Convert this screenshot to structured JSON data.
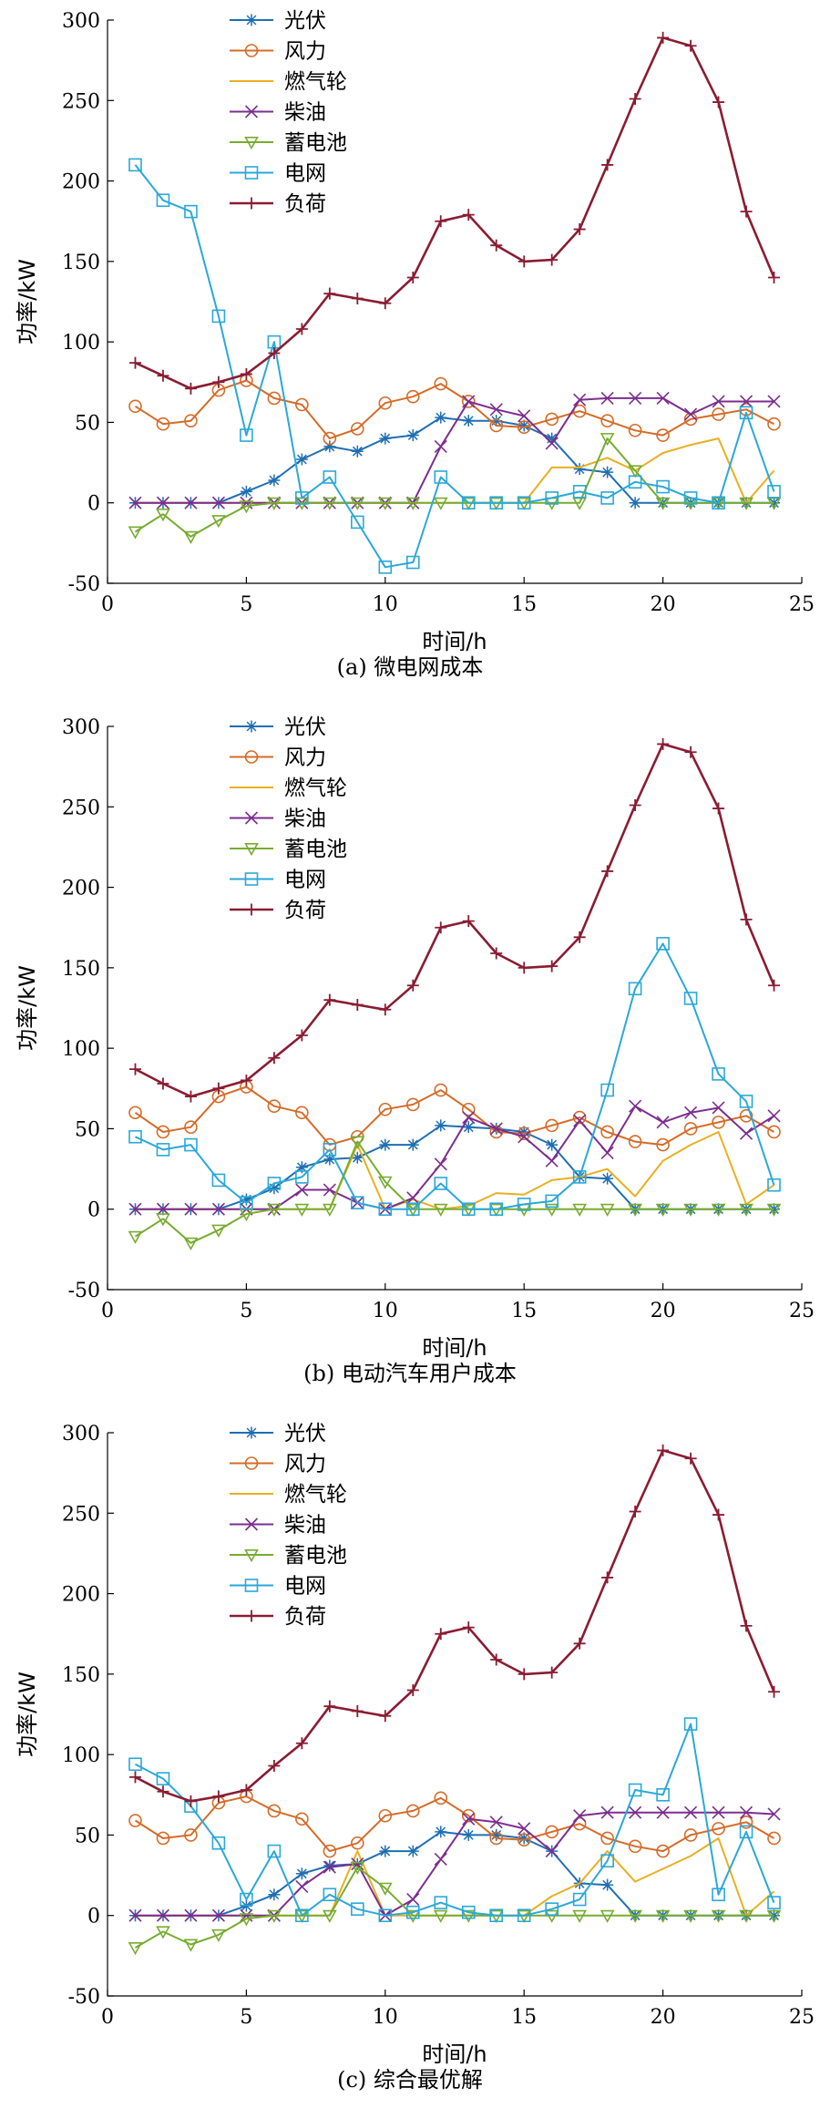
{
  "chart_data": [
    {
      "type": "line",
      "caption": "(a) 微电网成本",
      "xlabel": "时间/h",
      "ylabel": "功率/kW",
      "xlim": [
        0,
        25
      ],
      "ylim": [
        -50,
        300
      ],
      "xticks": [
        0,
        5,
        10,
        15,
        20,
        25
      ],
      "yticks": [
        -50,
        0,
        50,
        100,
        150,
        200,
        250,
        300
      ],
      "legend_position": "top-left",
      "x": [
        1,
        2,
        3,
        4,
        5,
        6,
        7,
        8,
        9,
        10,
        11,
        12,
        13,
        14,
        15,
        16,
        17,
        18,
        19,
        20,
        21,
        22,
        23,
        24
      ],
      "series": [
        {
          "name": "光伏",
          "color": "#1f6fb2",
          "marker": "asterisk",
          "values": [
            0,
            0,
            0,
            0,
            7,
            14,
            27,
            35,
            32,
            40,
            42,
            53,
            51,
            51,
            48,
            40,
            21,
            19,
            0,
            0,
            0,
            0,
            0,
            0
          ]
        },
        {
          "name": "风力",
          "color": "#d56b28",
          "marker": "circle",
          "values": [
            60,
            49,
            51,
            70,
            76,
            65,
            61,
            40,
            46,
            62,
            66,
            74,
            63,
            48,
            47,
            52,
            57,
            51,
            45,
            42,
            52,
            55,
            58,
            49
          ]
        },
        {
          "name": "燃气轮",
          "color": "#e8b021",
          "marker": "none",
          "values": [
            0,
            0,
            0,
            0,
            0,
            0,
            0,
            0,
            0,
            0,
            0,
            0,
            0,
            0,
            0,
            22,
            22,
            28,
            20,
            31,
            36,
            40,
            0,
            20
          ]
        },
        {
          "name": "柴油",
          "color": "#7b2e8e",
          "marker": "x",
          "values": [
            0,
            0,
            0,
            0,
            0,
            0,
            0,
            0,
            0,
            0,
            0,
            35,
            63,
            58,
            54,
            37,
            64,
            65,
            65,
            65,
            55,
            63,
            63,
            63
          ]
        },
        {
          "name": "蓄电池",
          "color": "#77ac30",
          "marker": "triangle",
          "values": [
            -18,
            -7,
            -21,
            -11,
            -2,
            0,
            0,
            0,
            0,
            0,
            0,
            0,
            0,
            0,
            0,
            0,
            0,
            40,
            20,
            0,
            0,
            0,
            0,
            0
          ]
        },
        {
          "name": "电网",
          "color": "#2aa8d8",
          "marker": "square",
          "values": [
            210,
            188,
            181,
            116,
            42,
            100,
            3,
            16,
            -12,
            -40,
            -37,
            16,
            0,
            0,
            0,
            3,
            7,
            3,
            13,
            10,
            3,
            0,
            56,
            7
          ]
        },
        {
          "name": "负荷",
          "color": "#8a1c32",
          "marker": "plus",
          "values": [
            87,
            79,
            71,
            75,
            80,
            93,
            108,
            130,
            127,
            124,
            140,
            175,
            179,
            160,
            150,
            151,
            170,
            210,
            251,
            289,
            284,
            249,
            181,
            140
          ]
        }
      ]
    },
    {
      "type": "line",
      "caption": "(b) 电动汽车用户成本",
      "xlabel": "时间/h",
      "ylabel": "功率/kW",
      "xlim": [
        0,
        25
      ],
      "ylim": [
        -50,
        300
      ],
      "xticks": [
        0,
        5,
        10,
        15,
        20,
        25
      ],
      "yticks": [
        -50,
        0,
        50,
        100,
        150,
        200,
        250,
        300
      ],
      "legend_position": "top-left",
      "x": [
        1,
        2,
        3,
        4,
        5,
        6,
        7,
        8,
        9,
        10,
        11,
        12,
        13,
        14,
        15,
        16,
        17,
        18,
        19,
        20,
        21,
        22,
        23,
        24
      ],
      "series": [
        {
          "name": "光伏",
          "color": "#1f6fb2",
          "marker": "asterisk",
          "values": [
            0,
            0,
            0,
            0,
            6,
            13,
            26,
            31,
            32,
            40,
            40,
            52,
            51,
            50,
            48,
            40,
            20,
            19,
            0,
            0,
            0,
            0,
            0,
            0
          ]
        },
        {
          "name": "风力",
          "color": "#d56b28",
          "marker": "circle",
          "values": [
            60,
            48,
            51,
            70,
            76,
            64,
            60,
            40,
            45,
            62,
            65,
            74,
            62,
            48,
            47,
            52,
            57,
            48,
            42,
            40,
            50,
            54,
            58,
            48
          ]
        },
        {
          "name": "燃气轮",
          "color": "#e8b021",
          "marker": "none",
          "values": [
            0,
            0,
            0,
            0,
            0,
            0,
            0,
            0,
            40,
            0,
            6,
            0,
            2,
            10,
            9,
            18,
            20,
            25,
            8,
            30,
            40,
            48,
            3,
            15
          ]
        },
        {
          "name": "柴油",
          "color": "#7b2e8e",
          "marker": "x",
          "values": [
            0,
            0,
            0,
            0,
            0,
            0,
            12,
            12,
            4,
            0,
            7,
            28,
            57,
            50,
            45,
            30,
            55,
            35,
            64,
            54,
            60,
            63,
            47,
            58
          ]
        },
        {
          "name": "蓄电池",
          "color": "#77ac30",
          "marker": "triangle",
          "values": [
            -17,
            -6,
            -21,
            -13,
            -3,
            0,
            0,
            0,
            42,
            17,
            0,
            0,
            0,
            0,
            0,
            0,
            0,
            0,
            0,
            0,
            0,
            0,
            0,
            0
          ]
        },
        {
          "name": "电网",
          "color": "#2aa8d8",
          "marker": "square",
          "values": [
            45,
            37,
            40,
            18,
            4,
            16,
            20,
            37,
            4,
            0,
            0,
            16,
            0,
            0,
            3,
            5,
            20,
            74,
            137,
            165,
            131,
            84,
            67,
            15
          ]
        },
        {
          "name": "负荷",
          "color": "#8a1c32",
          "marker": "plus",
          "values": [
            87,
            78,
            70,
            75,
            80,
            94,
            108,
            130,
            127,
            124,
            139,
            175,
            179,
            159,
            150,
            151,
            169,
            210,
            251,
            289,
            284,
            249,
            180,
            139
          ]
        }
      ]
    },
    {
      "type": "line",
      "caption": "(c) 综合最优解",
      "xlabel": "时间/h",
      "ylabel": "功率/kW",
      "xlim": [
        0,
        25
      ],
      "ylim": [
        -50,
        300
      ],
      "xticks": [
        0,
        5,
        10,
        15,
        20,
        25
      ],
      "yticks": [
        -50,
        0,
        50,
        100,
        150,
        200,
        250,
        300
      ],
      "legend_position": "top-left",
      "x": [
        1,
        2,
        3,
        4,
        5,
        6,
        7,
        8,
        9,
        10,
        11,
        12,
        13,
        14,
        15,
        16,
        17,
        18,
        19,
        20,
        21,
        22,
        23,
        24
      ],
      "series": [
        {
          "name": "光伏",
          "color": "#1f6fb2",
          "marker": "asterisk",
          "values": [
            0,
            0,
            0,
            0,
            6,
            13,
            26,
            31,
            32,
            40,
            40,
            52,
            50,
            50,
            48,
            40,
            20,
            19,
            0,
            0,
            0,
            0,
            0,
            0
          ]
        },
        {
          "name": "风力",
          "color": "#d56b28",
          "marker": "circle",
          "values": [
            59,
            48,
            50,
            70,
            74,
            65,
            60,
            40,
            45,
            62,
            65,
            73,
            62,
            48,
            47,
            52,
            57,
            48,
            43,
            40,
            50,
            54,
            58,
            48
          ]
        },
        {
          "name": "燃气轮",
          "color": "#e8b021",
          "marker": "none",
          "values": [
            0,
            0,
            0,
            0,
            0,
            0,
            0,
            0,
            40,
            0,
            0,
            0,
            0,
            0,
            0,
            12,
            20,
            40,
            21,
            29,
            37,
            48,
            0,
            15
          ]
        },
        {
          "name": "柴油",
          "color": "#7b2e8e",
          "marker": "x",
          "values": [
            0,
            0,
            0,
            0,
            0,
            0,
            18,
            30,
            32,
            0,
            10,
            35,
            60,
            58,
            54,
            40,
            62,
            64,
            64,
            64,
            64,
            64,
            64,
            63
          ]
        },
        {
          "name": "蓄电池",
          "color": "#77ac30",
          "marker": "triangle",
          "values": [
            -20,
            -10,
            -18,
            -12,
            -2,
            0,
            0,
            0,
            30,
            17,
            0,
            0,
            0,
            0,
            0,
            0,
            0,
            0,
            0,
            0,
            0,
            0,
            0,
            0
          ]
        },
        {
          "name": "电网",
          "color": "#2aa8d8",
          "marker": "square",
          "values": [
            94,
            85,
            68,
            45,
            10,
            40,
            0,
            13,
            4,
            0,
            2,
            8,
            2,
            0,
            0,
            4,
            10,
            34,
            78,
            75,
            119,
            13,
            52,
            8
          ]
        },
        {
          "name": "负荷",
          "color": "#8a1c32",
          "marker": "plus",
          "values": [
            86,
            77,
            71,
            74,
            78,
            93,
            107,
            130,
            127,
            124,
            140,
            175,
            179,
            159,
            150,
            151,
            169,
            210,
            251,
            289,
            284,
            249,
            180,
            139
          ]
        }
      ]
    }
  ]
}
